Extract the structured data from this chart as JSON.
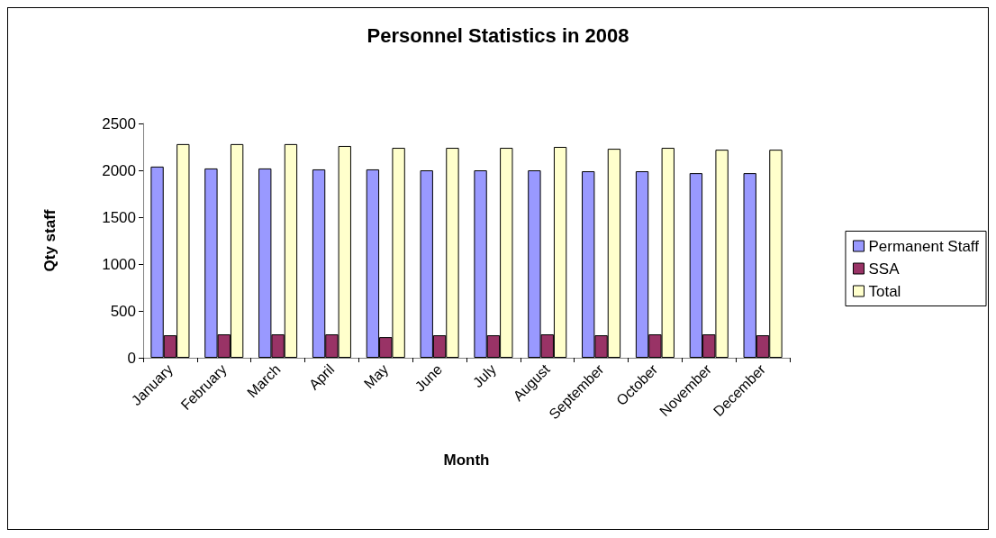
{
  "chart_data": {
    "type": "bar",
    "title": "Personnel Statistics in 2008",
    "xlabel": "Month",
    "ylabel": "Qty staff",
    "categories": [
      "January",
      "February",
      "March",
      "April",
      "May",
      "June",
      "July",
      "August",
      "September",
      "October",
      "November",
      "December"
    ],
    "series": [
      {
        "name": "Permanent Staff",
        "color": "#9999ff",
        "values": [
          2040,
          2020,
          2020,
          2010,
          2010,
          2000,
          2000,
          2000,
          1990,
          1990,
          1970,
          1970
        ]
      },
      {
        "name": "SSA",
        "color": "#993366",
        "values": [
          240,
          250,
          250,
          250,
          220,
          240,
          240,
          250,
          240,
          250,
          250,
          240
        ]
      },
      {
        "name": "Total",
        "color": "#ffffcc",
        "values": [
          2280,
          2280,
          2280,
          2260,
          2240,
          2240,
          2240,
          2250,
          2230,
          2240,
          2220,
          2220
        ]
      }
    ],
    "ylim": [
      0,
      2500
    ],
    "yticks": [
      0,
      500,
      1000,
      1500,
      2000,
      2500
    ],
    "grid": false,
    "legend": "right"
  }
}
